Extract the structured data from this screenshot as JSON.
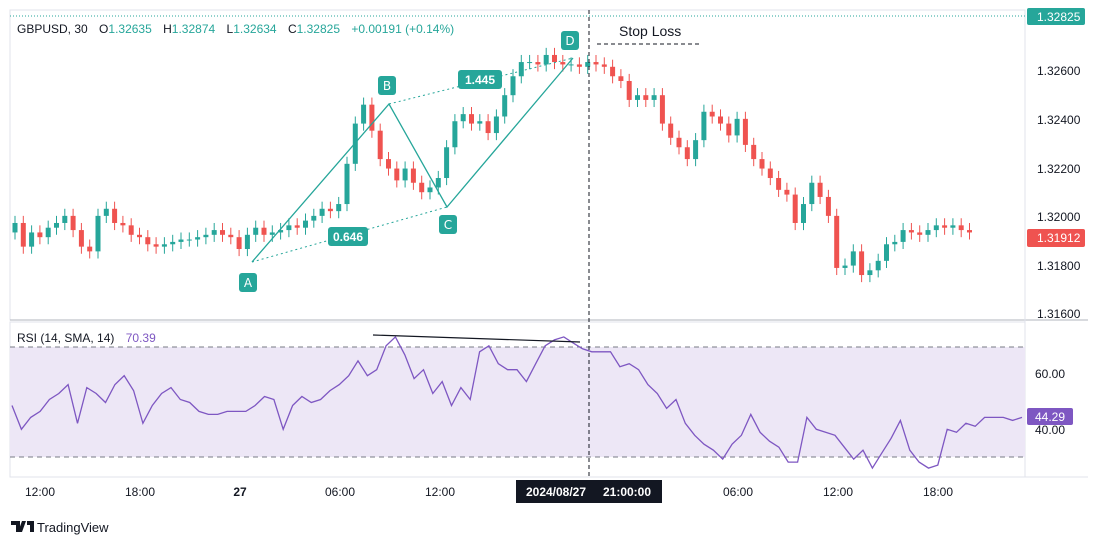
{
  "header": {
    "symbol": "GBPUSD, 30",
    "open_label": "O",
    "open": "1.32635",
    "high_label": "H",
    "high": "1.32874",
    "low_label": "L",
    "low": "1.32634",
    "close_label": "C",
    "close": "1.32825",
    "change": "+0.00191 (+0.14%)"
  },
  "annotations": {
    "stop_loss": "Stop Loss",
    "points": [
      "A",
      "B",
      "C",
      "D"
    ],
    "ratio_bc": "0.646",
    "ratio_cd": "1.445"
  },
  "price_axis": {
    "ticks": [
      "1.32600",
      "1.32400",
      "1.32200",
      "1.32000",
      "1.31800",
      "1.31600"
    ],
    "tick_values": [
      1.326,
      1.324,
      1.322,
      1.32,
      1.318,
      1.316
    ],
    "last_price": "1.31912",
    "top_price": "1.32825"
  },
  "rsi": {
    "label": "RSI (14, SMA, 14)",
    "value": "70.39",
    "ticks": [
      "60.00",
      "40.00"
    ],
    "tick_values": [
      60,
      40
    ],
    "current": "44.29",
    "upper_band": 70,
    "lower_band": 30
  },
  "time_axis": {
    "labels": [
      "12:00",
      "18:00",
      "27",
      "06:00",
      "12:00",
      "06:00",
      "12:00",
      "18:00"
    ],
    "crosshair_date": "2024/08/27",
    "crosshair_time": "21:00:00"
  },
  "branding": {
    "name": "TradingView"
  },
  "colors": {
    "up": "#26a69a",
    "down": "#ef5350",
    "rsi_line": "#7e57c2",
    "rsi_band": "#ede7f6",
    "pattern": "#26a69a",
    "last_price_bg": "#ef5350",
    "rsi_badge_bg": "#7e57c2",
    "top_badge_bg": "#26a69a"
  },
  "chart_data": {
    "type": "candlestick",
    "title": "GBPUSD, 30",
    "ylim": [
      1.3154,
      1.3285
    ],
    "series": [
      {
        "name": "GBPUSD",
        "close": [
          1.3195,
          1.3185,
          1.3191,
          1.3189,
          1.3193,
          1.3195,
          1.3198,
          1.3192,
          1.3185,
          1.3183,
          1.3198,
          1.3201,
          1.3195,
          1.3194,
          1.319,
          1.3189,
          1.3186,
          1.3185,
          1.3186,
          1.3187,
          1.3188,
          1.3188,
          1.3189,
          1.319,
          1.3192,
          1.319,
          1.3189,
          1.3184,
          1.319,
          1.3193,
          1.319,
          1.3191,
          1.3192,
          1.3194,
          1.3193,
          1.3196,
          1.3198,
          1.3201,
          1.32,
          1.3203,
          1.322,
          1.3237,
          1.3245,
          1.3234,
          1.3222,
          1.3218,
          1.3213,
          1.3218,
          1.3212,
          1.3208,
          1.321,
          1.3214,
          1.3227,
          1.3238,
          1.3241,
          1.3237,
          1.3238,
          1.3233,
          1.324,
          1.3249,
          1.3257,
          1.3263,
          1.3263,
          1.3262,
          1.3266,
          1.3263,
          1.3262,
          1.3262,
          1.3261,
          1.3263,
          1.3262,
          1.3261,
          1.3257,
          1.3255,
          1.3247,
          1.3249,
          1.3247,
          1.3249,
          1.3237,
          1.3231,
          1.3227,
          1.3222,
          1.323,
          1.3242,
          1.324,
          1.3237,
          1.3232,
          1.3239,
          1.3228,
          1.3222,
          1.3218,
          1.3214,
          1.3209,
          1.3207,
          1.3195,
          1.3203,
          1.3212,
          1.3206,
          1.3198,
          1.3176,
          1.3177,
          1.3183,
          1.3173,
          1.3175,
          1.3179,
          1.3186,
          1.3187,
          1.3192,
          1.3191,
          1.319,
          1.3192,
          1.3194,
          1.3193,
          1.3194,
          1.3192,
          1.3191
        ]
      }
    ],
    "rsi": {
      "name": "RSI (14, SMA, 14)",
      "ylim": [
        24,
        76
      ],
      "upper": 70,
      "lower": 30,
      "values": [
        48,
        40,
        44,
        46,
        50,
        52,
        55,
        42,
        54,
        52,
        49,
        55,
        58,
        53,
        42,
        48,
        52,
        54,
        50,
        49,
        46,
        45,
        45,
        46,
        46,
        46,
        48,
        51,
        50,
        40,
        48,
        51,
        49,
        50,
        53,
        55,
        58,
        63,
        58,
        60,
        68,
        71,
        65,
        57,
        60,
        52,
        56,
        48,
        54,
        50,
        66,
        68,
        62,
        60,
        60,
        56,
        62,
        68,
        70,
        71,
        69,
        67,
        66,
        66,
        66,
        61,
        62,
        60,
        55,
        52,
        47,
        50,
        42,
        38,
        35,
        33,
        30,
        35,
        38,
        45,
        39,
        36,
        34,
        29,
        29,
        44,
        40,
        39,
        38,
        34,
        30,
        33,
        27,
        32,
        37,
        43,
        33,
        29,
        27,
        28,
        40,
        39,
        42,
        41,
        44,
        44,
        44,
        43,
        44
      ]
    }
  }
}
